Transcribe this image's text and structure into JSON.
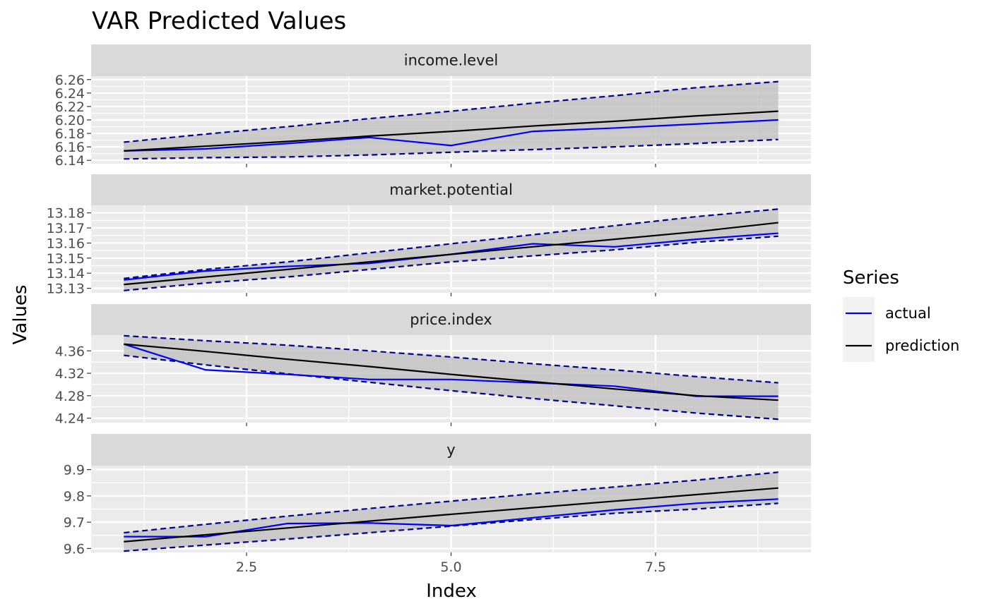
{
  "chart_data": {
    "type": "line",
    "title": "VAR Predicted Values",
    "xlabel": "Index",
    "ylabel": "Values",
    "x_ticks": [
      "2.5",
      "5.0",
      "7.5"
    ],
    "x_tick_values": [
      2.5,
      5.0,
      7.5
    ],
    "xlim": [
      0.6,
      9.4
    ],
    "x": [
      1,
      2,
      3,
      4,
      5,
      6,
      7,
      8,
      9
    ],
    "legend": {
      "title": "Series",
      "position": "right",
      "entries": [
        {
          "label": "actual",
          "color": "#0000ff"
        },
        {
          "label": "prediction",
          "color": "#000000"
        }
      ]
    },
    "colors": {
      "actual": "#0000ff",
      "prediction": "#000000",
      "interval": "#00008b",
      "band": "#bebebe",
      "panel_bg": "#ebebeb",
      "strip_bg": "#d9d9d9",
      "grid": "#ffffff"
    },
    "panels": [
      {
        "name": "income.level",
        "ylim": [
          6.135,
          6.265
        ],
        "y_ticks": [
          "6.14",
          "6.16",
          "6.18",
          "6.20",
          "6.22",
          "6.24",
          "6.26"
        ],
        "y_tick_values": [
          6.14,
          6.16,
          6.18,
          6.2,
          6.22,
          6.24,
          6.26
        ],
        "actual": [
          6.154,
          6.157,
          6.165,
          6.174,
          6.162,
          6.183,
          6.188,
          6.194,
          6.2
        ],
        "prediction": [
          6.154,
          6.161,
          6.168,
          6.176,
          6.183,
          6.191,
          6.198,
          6.206,
          6.213
        ],
        "lower": [
          6.142,
          6.144,
          6.145,
          6.148,
          6.152,
          6.156,
          6.16,
          6.165,
          6.171
        ],
        "upper": [
          6.167,
          6.179,
          6.19,
          6.202,
          6.213,
          6.225,
          6.236,
          6.248,
          6.257
        ]
      },
      {
        "name": "market.potential",
        "ylim": [
          13.127,
          13.185
        ],
        "y_ticks": [
          "13.13",
          "13.14",
          "13.15",
          "13.16",
          "13.17",
          "13.18"
        ],
        "y_tick_values": [
          13.13,
          13.14,
          13.15,
          13.16,
          13.17,
          13.18
        ],
        "actual": [
          13.1355,
          13.1415,
          13.1445,
          13.1465,
          13.1525,
          13.1595,
          13.1575,
          13.1625,
          13.1665
        ],
        "prediction": [
          13.1325,
          13.1375,
          13.1425,
          13.1475,
          13.1525,
          13.1575,
          13.1625,
          13.1675,
          13.1735
        ],
        "lower": [
          13.1285,
          13.1335,
          13.1375,
          13.1425,
          13.1475,
          13.1515,
          13.1555,
          13.1605,
          13.1645
        ],
        "upper": [
          13.1365,
          13.1425,
          13.1475,
          13.1535,
          13.1595,
          13.1655,
          13.1715,
          13.1775,
          13.1825
        ]
      },
      {
        "name": "price.index",
        "ylim": [
          4.232,
          4.388
        ],
        "y_ticks": [
          "4.24",
          "4.28",
          "4.32",
          "4.36"
        ],
        "y_tick_values": [
          4.24,
          4.28,
          4.32,
          4.36
        ],
        "actual": [
          4.372,
          4.326,
          4.318,
          4.309,
          4.309,
          4.303,
          4.297,
          4.279,
          4.279
        ],
        "prediction": [
          4.372,
          4.359,
          4.345,
          4.332,
          4.318,
          4.305,
          4.292,
          4.28,
          4.272
        ],
        "lower": [
          4.352,
          4.335,
          4.319,
          4.304,
          4.289,
          4.275,
          4.262,
          4.249,
          4.238
        ],
        "upper": [
          4.387,
          4.378,
          4.37,
          4.36,
          4.349,
          4.337,
          4.326,
          4.314,
          4.303
        ]
      },
      {
        "name": "y",
        "ylim": [
          9.585,
          9.915
        ],
        "y_ticks": [
          "9.6",
          "9.7",
          "9.8",
          "9.9"
        ],
        "y_tick_values": [
          9.6,
          9.7,
          9.8,
          9.9
        ],
        "actual": [
          9.645,
          9.645,
          9.695,
          9.697,
          9.687,
          9.717,
          9.747,
          9.772,
          9.788
        ],
        "prediction": [
          9.626,
          9.652,
          9.678,
          9.704,
          9.73,
          9.755,
          9.78,
          9.805,
          9.83
        ],
        "lower": [
          9.59,
          9.613,
          9.636,
          9.66,
          9.685,
          9.71,
          9.734,
          9.75,
          9.772
        ],
        "upper": [
          9.66,
          9.692,
          9.723,
          9.752,
          9.78,
          9.808,
          9.834,
          9.86,
          9.89
        ]
      }
    ]
  }
}
